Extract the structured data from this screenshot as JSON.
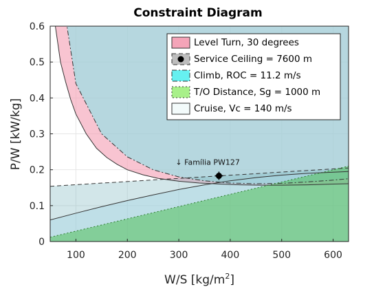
{
  "chart_data": {
    "type": "area",
    "title": "Constraint Diagram",
    "xlabel": "W/S [kg/m",
    "xlabel_sup": "2",
    "xlabel_close": "]",
    "ylabel": "P/W [kW/kg]",
    "xlim": [
      50,
      630
    ],
    "ylim": [
      0,
      0.6
    ],
    "xticks": [
      "100",
      "200",
      "300",
      "400",
      "500",
      "600"
    ],
    "yticks": [
      "0",
      "0.1",
      "0.2",
      "0.3",
      "0.4",
      "0.5",
      "0.6"
    ],
    "xtick_values": [
      100,
      200,
      300,
      400,
      500,
      600
    ],
    "ytick_values": [
      0,
      0.1,
      0.2,
      0.3,
      0.4,
      0.5,
      0.6
    ],
    "grid": true,
    "legend_position": "top-right",
    "series": [
      {
        "name": "Level Turn, 30 degrees",
        "color": "#f4a4b8",
        "line_style": "solid",
        "x": [
          50,
          60,
          70,
          80,
          90,
          100,
          120,
          140,
          160,
          180,
          200,
          230,
          260,
          300,
          340,
          380,
          420,
          460,
          500,
          550,
          600,
          630
        ],
        "y": [
          0.85,
          0.6,
          0.5,
          0.445,
          0.395,
          0.355,
          0.3,
          0.26,
          0.234,
          0.215,
          0.2,
          0.186,
          0.176,
          0.168,
          0.163,
          0.16,
          0.158,
          0.157,
          0.157,
          0.158,
          0.16,
          0.161
        ]
      },
      {
        "name": "Service Ceiling = 7600 m",
        "color": "#999999",
        "line_style": "dashed",
        "x": [
          50,
          630
        ],
        "y": [
          0.154,
          0.205
        ]
      },
      {
        "name": "Climb, ROC = 11.2 m/s",
        "color": "#66f0f0",
        "line_style": "dash-dot",
        "x": [
          50,
          100,
          150,
          200,
          250,
          300,
          350,
          400,
          450,
          500,
          550,
          600,
          630
        ],
        "y": [
          0.9,
          0.44,
          0.3,
          0.236,
          0.2,
          0.18,
          0.169,
          0.163,
          0.161,
          0.162,
          0.166,
          0.171,
          0.175
        ]
      },
      {
        "name": "T/O Distance, Sg = 1000 m",
        "color": "#a8f08a",
        "line_style": "dotted",
        "x": [
          50,
          630
        ],
        "y": [
          0.012,
          0.21
        ]
      },
      {
        "name": "Cruise, Vc = 140 m/s",
        "color": "#f3fbfb",
        "line_style": "solid",
        "x": [
          50,
          100,
          150,
          200,
          250,
          300,
          350,
          400,
          450,
          500,
          550,
          600,
          630
        ],
        "y": [
          0.06,
          0.079,
          0.097,
          0.114,
          0.13,
          0.145,
          0.158,
          0.169,
          0.178,
          0.185,
          0.19,
          0.193,
          0.195
        ]
      }
    ],
    "annotations": [
      {
        "text": "↓ Família PW127",
        "x": 378,
        "y": 0.183
      }
    ]
  }
}
